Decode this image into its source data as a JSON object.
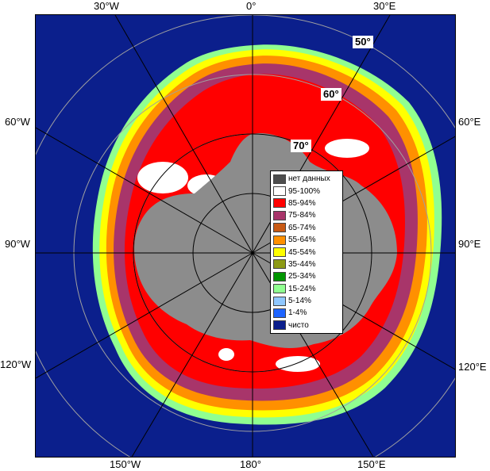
{
  "map": {
    "longitude_labels": {
      "top_left": "30°W",
      "top_center": "0°",
      "top_right": "30°E",
      "left_upper": "60°W",
      "right_upper": "60°E",
      "left_middle": "90°W",
      "right_middle": "90°E",
      "left_lower": "120°W",
      "right_lower": "120°E",
      "bottom_left": "150°W",
      "bottom_center": "180°",
      "bottom_right": "150°E"
    },
    "latitude_labels": {
      "lat50": "50°",
      "lat60": "60°",
      "lat70": "70°"
    },
    "colors": {
      "open_water": "#0b1f8c",
      "land": "#8c8c8c",
      "grid": "#a0a0a0"
    }
  },
  "legend": {
    "items": [
      {
        "label": "нет данных",
        "color": "#4d4d4d"
      },
      {
        "label": "95-100%",
        "color": "#ffffff"
      },
      {
        "label": "85-94%",
        "color": "#ff0000"
      },
      {
        "label": "75-84%",
        "color": "#a8356a"
      },
      {
        "label": "65-74%",
        "color": "#c85a14"
      },
      {
        "label": "55-64%",
        "color": "#ff9000"
      },
      {
        "label": "45-54%",
        "color": "#ffff00"
      },
      {
        "label": "35-44%",
        "color": "#8c9a14"
      },
      {
        "label": "25-34%",
        "color": "#009600"
      },
      {
        "label": "15-24%",
        "color": "#90ff90"
      },
      {
        "label": "5-14%",
        "color": "#90c8ff"
      },
      {
        "label": "1-4%",
        "color": "#1e64ff"
      },
      {
        "label": "чисто",
        "color": "#0b1f8c"
      }
    ]
  }
}
